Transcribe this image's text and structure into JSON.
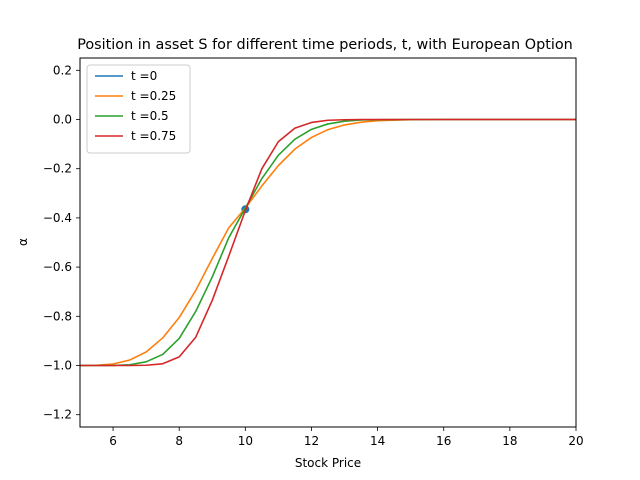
{
  "chart_data": {
    "type": "line",
    "title": "Position in asset S for different time periods, t, with European Option",
    "xlabel": "Stock Price",
    "ylabel": "α",
    "xlim": [
      5,
      20
    ],
    "ylim": [
      -1.25,
      0.25
    ],
    "xticks": [
      6,
      8,
      10,
      12,
      14,
      16,
      18,
      20
    ],
    "xtick_labels": [
      "6",
      "8",
      "10",
      "12",
      "14",
      "16",
      "18",
      "20"
    ],
    "yticks": [
      -1.2,
      -1.0,
      -0.8,
      -0.6,
      -0.4,
      -0.2,
      0.0,
      0.2
    ],
    "ytick_labels": [
      "−1.2",
      "−1.0",
      "−0.8",
      "−0.6",
      "−0.4",
      "−0.2",
      "0.0",
      "0.2"
    ],
    "grid": false,
    "legend_position": "top-left",
    "series": [
      {
        "name": "t =0",
        "color": "#1f77b4",
        "marker": "point",
        "x": [
          10
        ],
        "y": [
          -0.365
        ]
      },
      {
        "name": "t =0.25",
        "color": "#ff7f0e",
        "x": [
          5,
          5.5,
          6,
          6.5,
          7,
          7.5,
          8,
          8.5,
          9,
          9.5,
          10,
          10.5,
          11,
          11.5,
          12,
          12.5,
          13,
          13.5,
          14,
          15,
          16,
          17,
          18,
          19,
          20
        ],
        "y": [
          -1.0,
          -0.999,
          -0.994,
          -0.978,
          -0.945,
          -0.888,
          -0.805,
          -0.695,
          -0.565,
          -0.44,
          -0.36,
          -0.27,
          -0.187,
          -0.12,
          -0.073,
          -0.041,
          -0.022,
          -0.011,
          -0.005,
          -0.001,
          0.0,
          0.0,
          0.0,
          0.0,
          0.0
        ]
      },
      {
        "name": "t =0.5",
        "color": "#2ca02c",
        "x": [
          5,
          5.5,
          6,
          6.5,
          7,
          7.5,
          8,
          8.5,
          9,
          9.5,
          10,
          10.5,
          11,
          11.5,
          12,
          12.5,
          13,
          13.5,
          14,
          15,
          16,
          17,
          18,
          19,
          20
        ],
        "y": [
          -1.0,
          -1.0,
          -1.0,
          -0.997,
          -0.985,
          -0.955,
          -0.89,
          -0.78,
          -0.64,
          -0.48,
          -0.36,
          -0.24,
          -0.145,
          -0.08,
          -0.04,
          -0.018,
          -0.007,
          -0.002,
          -0.001,
          0.0,
          0.0,
          0.0,
          0.0,
          0.0,
          0.0
        ]
      },
      {
        "name": "t =0.75",
        "color": "#d62728",
        "x": [
          5,
          5.5,
          6,
          6.5,
          7,
          7.5,
          8,
          8.5,
          9,
          9.5,
          10,
          10.5,
          11,
          11.5,
          12,
          12.5,
          13,
          13.5,
          14,
          15,
          16,
          17,
          18,
          19,
          20
        ],
        "y": [
          -1.0,
          -1.0,
          -1.0,
          -1.0,
          -0.999,
          -0.993,
          -0.965,
          -0.885,
          -0.735,
          -0.555,
          -0.37,
          -0.2,
          -0.09,
          -0.035,
          -0.012,
          -0.003,
          -0.001,
          0.0,
          0.0,
          0.0,
          0.0,
          0.0,
          0.0,
          0.0,
          0.0
        ]
      }
    ]
  }
}
